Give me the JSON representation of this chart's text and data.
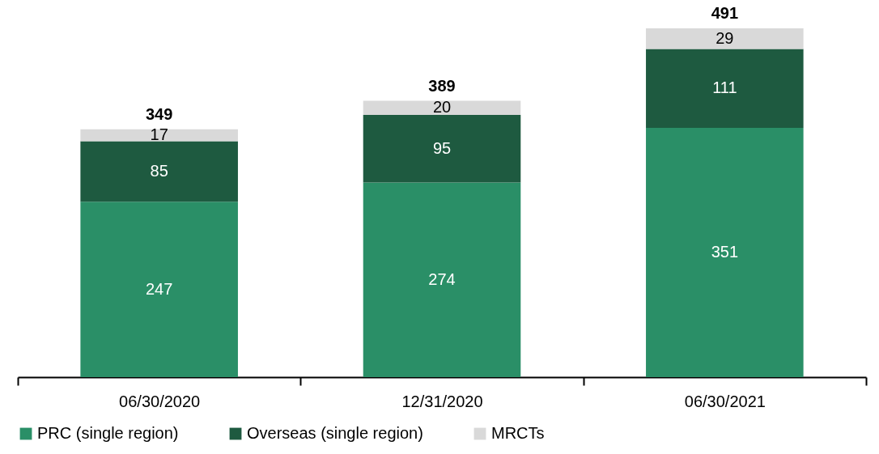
{
  "chart_data": {
    "type": "bar",
    "stacked": true,
    "data_labels": true,
    "legend": "bottom",
    "categories": [
      "06/30/2020",
      "12/31/2020",
      "06/30/2021"
    ],
    "series": [
      {
        "name": "PRC (single region)",
        "color": "#2a8f67",
        "values": [
          247,
          274,
          351
        ]
      },
      {
        "name": "Overseas (single region)",
        "color": "#1e5a40",
        "values": [
          85,
          95,
          111
        ]
      },
      {
        "name": "MRCTs",
        "color": "#d9d9d9",
        "values": [
          17,
          20,
          29
        ]
      }
    ],
    "totals": [
      "349",
      "389",
      "491"
    ]
  }
}
